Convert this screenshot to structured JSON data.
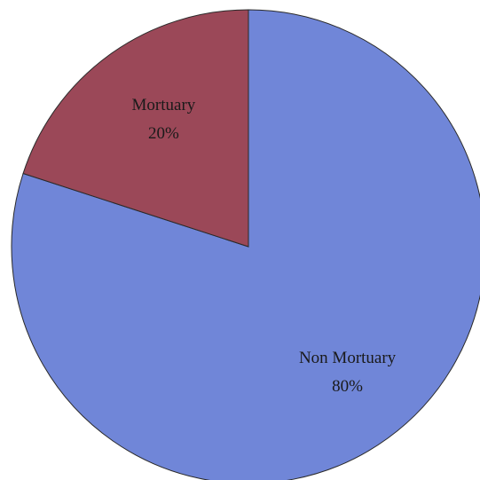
{
  "chart_data": {
    "type": "pie",
    "categories": [
      "Non Mortuary",
      "Mortuary"
    ],
    "values": [
      80,
      20
    ],
    "value_labels": [
      "80%",
      "20%"
    ],
    "colors": [
      "#7086d8",
      "#9b4858"
    ]
  }
}
